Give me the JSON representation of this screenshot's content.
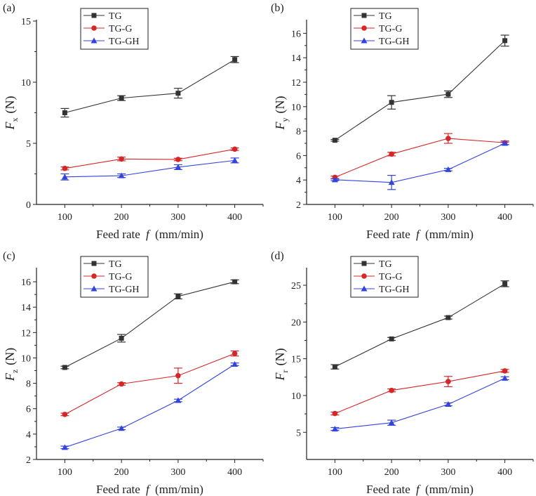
{
  "chart_data": [
    {
      "type": "line",
      "panel_label": "(a)",
      "ylabel_symbol": "F",
      "ylabel_sub": "x",
      "ylabel_unit": "(N)",
      "xlabel_pre": "Feed rate ",
      "xlabel_sym": "f",
      "xlabel_post": " (mm/min)",
      "x": [
        100,
        200,
        300,
        400
      ],
      "xlim": [
        50,
        450
      ],
      "ylim": [
        0,
        15
      ],
      "yticks": [
        0,
        5,
        10,
        15
      ],
      "legend": "top-left",
      "series": [
        {
          "name": "TG",
          "color": "#333333",
          "marker": "square",
          "values": [
            7.5,
            8.7,
            9.1,
            11.85
          ],
          "errors": [
            0.35,
            0.2,
            0.4,
            0.25
          ]
        },
        {
          "name": "TG-G",
          "color": "#d62728",
          "marker": "circle",
          "values": [
            2.95,
            3.72,
            3.68,
            4.52
          ],
          "errors": [
            0.12,
            0.15,
            0.1,
            0.1
          ]
        },
        {
          "name": "TG-GH",
          "color": "#3344dd",
          "marker": "triangle",
          "values": [
            2.25,
            2.35,
            3.05,
            3.6
          ],
          "errors": [
            0.25,
            0.15,
            0.2,
            0.2
          ]
        }
      ]
    },
    {
      "type": "line",
      "panel_label": "(b)",
      "ylabel_symbol": "F",
      "ylabel_sub": "y",
      "ylabel_unit": "(N)",
      "xlabel_pre": "Feed rate ",
      "xlabel_sym": "f",
      "xlabel_post": " (mm/min)",
      "x": [
        100,
        200,
        300,
        400
      ],
      "xlim": [
        50,
        450
      ],
      "ylim": [
        2,
        17
      ],
      "yticks": [
        2,
        4,
        6,
        8,
        10,
        12,
        14,
        16
      ],
      "legend": "top-left",
      "series": [
        {
          "name": "TG",
          "color": "#333333",
          "marker": "square",
          "values": [
            7.25,
            10.35,
            11.02,
            15.4
          ],
          "errors": [
            0.07,
            0.55,
            0.27,
            0.45
          ]
        },
        {
          "name": "TG-G",
          "color": "#d62728",
          "marker": "circle",
          "values": [
            4.22,
            6.12,
            7.4,
            7.05
          ],
          "errors": [
            0.1,
            0.15,
            0.4,
            0.15
          ]
        },
        {
          "name": "TG-GH",
          "color": "#3344dd",
          "marker": "triangle",
          "values": [
            4.02,
            3.8,
            4.85,
            7.0
          ],
          "errors": [
            0.07,
            0.58,
            0.1,
            0.1
          ]
        }
      ]
    },
    {
      "type": "line",
      "panel_label": "(c)",
      "ylabel_symbol": "F",
      "ylabel_sub": "z",
      "ylabel_unit": "(N)",
      "xlabel_pre": "Feed rate ",
      "xlabel_sym": "f",
      "xlabel_post": " (mm/min)",
      "x": [
        100,
        200,
        300,
        400
      ],
      "xlim": [
        50,
        450
      ],
      "ylim": [
        2,
        17
      ],
      "yticks": [
        2,
        4,
        6,
        8,
        10,
        12,
        14,
        16
      ],
      "legend": "top-left",
      "series": [
        {
          "name": "TG",
          "color": "#333333",
          "marker": "square",
          "values": [
            9.25,
            11.55,
            14.85,
            16.0
          ],
          "errors": [
            0.1,
            0.3,
            0.2,
            0.15
          ]
        },
        {
          "name": "TG-G",
          "color": "#d62728",
          "marker": "circle",
          "values": [
            5.55,
            7.95,
            8.6,
            10.35
          ],
          "errors": [
            0.1,
            0.1,
            0.6,
            0.2
          ]
        },
        {
          "name": "TG-GH",
          "color": "#3344dd",
          "marker": "triangle",
          "values": [
            2.95,
            4.45,
            6.65,
            9.5
          ],
          "errors": [
            0.1,
            0.1,
            0.1,
            0.1
          ]
        }
      ]
    },
    {
      "type": "line",
      "panel_label": "(d)",
      "ylabel_symbol": "F",
      "ylabel_sub": "r",
      "ylabel_unit": "(N)",
      "xlabel_pre": "Feed rate ",
      "xlabel_sym": "f",
      "xlabel_post": " (mm/min)",
      "x": [
        100,
        200,
        300,
        400
      ],
      "xlim": [
        50,
        450
      ],
      "ylim": [
        1.3,
        27.2
      ],
      "yticks": [
        5,
        10,
        15,
        20,
        25
      ],
      "legend": "top-left",
      "series": [
        {
          "name": "TG",
          "color": "#333333",
          "marker": "square",
          "values": [
            13.9,
            17.7,
            20.6,
            25.2
          ],
          "errors": [
            0.3,
            0.2,
            0.2,
            0.4
          ]
        },
        {
          "name": "TG-G",
          "color": "#d62728",
          "marker": "circle",
          "values": [
            7.55,
            10.7,
            11.9,
            13.35
          ],
          "errors": [
            0.2,
            0.2,
            0.7,
            0.2
          ]
        },
        {
          "name": "TG-GH",
          "color": "#3344dd",
          "marker": "triangle",
          "values": [
            5.45,
            6.3,
            8.8,
            12.35
          ],
          "errors": [
            0.2,
            0.35,
            0.2,
            0.2
          ]
        }
      ]
    }
  ]
}
